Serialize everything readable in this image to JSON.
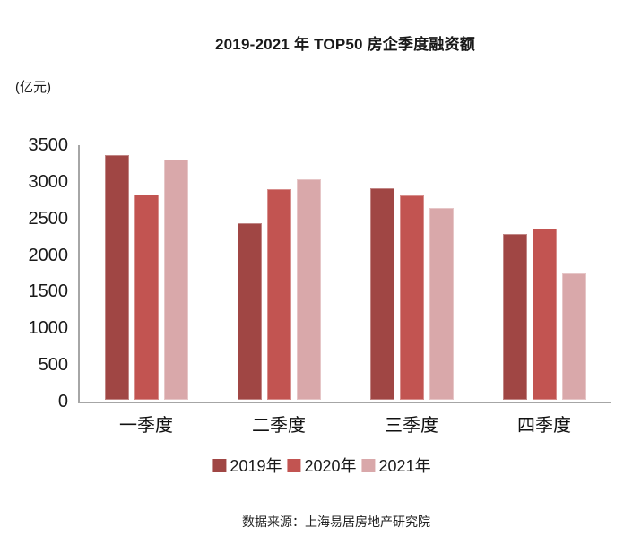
{
  "title": "2019-2021 年 TOP50 房企季度融资额",
  "unit_label": "(亿元)",
  "source": "数据来源：上海易居房地产研究院",
  "chart_data": {
    "type": "bar",
    "title": "2019-2021 年 TOP50 房企季度融资额",
    "unit": "亿元",
    "categories": [
      "一季度",
      "二季度",
      "三季度",
      "四季度"
    ],
    "series": [
      {
        "name": "2019年",
        "color": "#A04644",
        "values": [
          3340,
          2410,
          2890,
          2260
        ]
      },
      {
        "name": "2020年",
        "color": "#C25451",
        "values": [
          2800,
          2880,
          2790,
          2340
        ]
      },
      {
        "name": "2021年",
        "color": "#D9A8AA",
        "values": [
          3280,
          3010,
          2620,
          1730
        ]
      }
    ],
    "xlabel": "",
    "ylabel": "(亿元)",
    "ylim": [
      0,
      3500
    ],
    "yticks": [
      0,
      500,
      1000,
      1500,
      2000,
      2500,
      3000,
      3500
    ],
    "grid": false,
    "legend_position": "bottom",
    "axis_color": "#A6A6A6"
  }
}
